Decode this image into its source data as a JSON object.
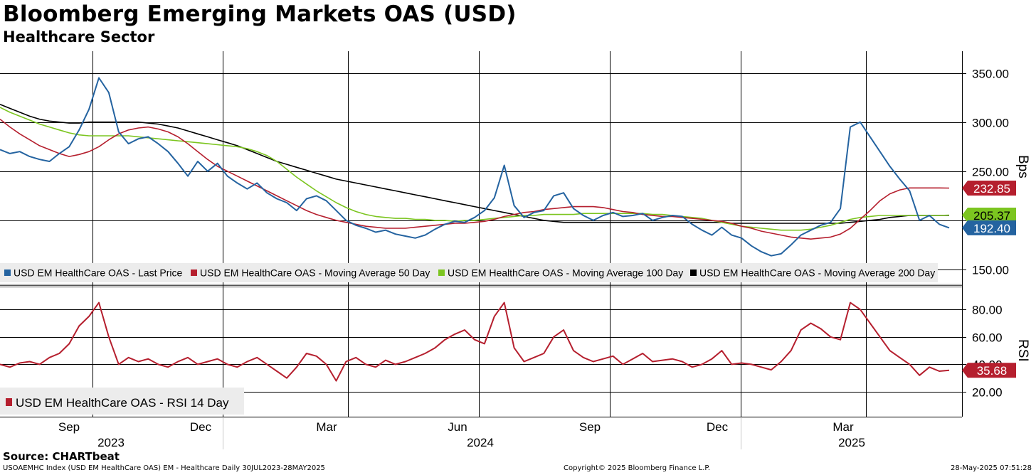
{
  "header": {
    "title": "Bloomberg Emerging Markets OAS (USD)",
    "subtitle": "Healthcare Sector"
  },
  "footer": {
    "source": "Source: CHARTbeat",
    "index_info": "USOAEMHC Index (USD EM HealthCare OAS) EM - Healthcare  Daily 30JUL2023-28MAY2025",
    "copyright": "Copyright© 2025 Bloomberg Finance L.P.",
    "timestamp": "28-May-2025 07:51:28"
  },
  "x_axis": {
    "months": [
      "Sep",
      "Dec",
      "Mar",
      "Jun",
      "Sep",
      "Dec",
      "Mar"
    ],
    "years": [
      "2023",
      "2024",
      "2025"
    ]
  },
  "colors": {
    "last_price": "#2463a0",
    "ma50": "#b51f2e",
    "ma100": "#7cc520",
    "ma200": "#000000",
    "rsi": "#b51f2e"
  },
  "chart_data": [
    {
      "type": "line",
      "title": "Bloomberg Emerging Markets OAS (USD)",
      "subtitle": "Healthcare Sector",
      "ylabel": "Bps",
      "ylim": [
        140,
        368
      ],
      "yticks": [
        "150.00",
        "200.00",
        "250.00",
        "300.00",
        "350.00"
      ],
      "ytick_values": [
        150,
        200,
        250,
        300,
        350
      ],
      "legend_position": "bottom-left",
      "x_dates": [
        "2023-07-30",
        "2023-08-06",
        "2023-08-13",
        "2023-08-20",
        "2023-08-27",
        "2023-09-03",
        "2023-09-10",
        "2023-09-17",
        "2023-09-24",
        "2023-10-01",
        "2023-10-08",
        "2023-10-15",
        "2023-10-22",
        "2023-10-29",
        "2023-11-05",
        "2023-11-12",
        "2023-11-19",
        "2023-11-26",
        "2023-12-03",
        "2023-12-10",
        "2023-12-17",
        "2023-12-24",
        "2023-12-31",
        "2024-01-07",
        "2024-01-14",
        "2024-01-21",
        "2024-01-28",
        "2024-02-04",
        "2024-02-11",
        "2024-02-18",
        "2024-02-25",
        "2024-03-03",
        "2024-03-10",
        "2024-03-17",
        "2024-03-24",
        "2024-03-31",
        "2024-04-07",
        "2024-04-14",
        "2024-04-21",
        "2024-04-28",
        "2024-05-05",
        "2024-05-12",
        "2024-05-19",
        "2024-05-26",
        "2024-06-02",
        "2024-06-09",
        "2024-06-16",
        "2024-06-23",
        "2024-06-30",
        "2024-07-07",
        "2024-07-14",
        "2024-07-21",
        "2024-07-28",
        "2024-08-04",
        "2024-08-11",
        "2024-08-18",
        "2024-08-25",
        "2024-09-01",
        "2024-09-08",
        "2024-09-15",
        "2024-09-22",
        "2024-09-29",
        "2024-10-06",
        "2024-10-13",
        "2024-10-20",
        "2024-10-27",
        "2024-11-03",
        "2024-11-10",
        "2024-11-17",
        "2024-11-24",
        "2024-12-01",
        "2024-12-08",
        "2024-12-15",
        "2024-12-22",
        "2024-12-29",
        "2025-01-05",
        "2025-01-12",
        "2025-01-19",
        "2025-01-26",
        "2025-02-02",
        "2025-02-09",
        "2025-02-16",
        "2025-02-23",
        "2025-03-02",
        "2025-03-09",
        "2025-03-16",
        "2025-03-23",
        "2025-03-30",
        "2025-04-06",
        "2025-04-13",
        "2025-04-20",
        "2025-04-27",
        "2025-05-04",
        "2025-05-11",
        "2025-05-18",
        "2025-05-25",
        "2025-05-28"
      ],
      "series": [
        {
          "name": "USD EM HealthCare OAS - Last Price",
          "color": "#2463a0",
          "last_label": "192.40",
          "values": [
            272,
            268,
            270,
            265,
            262,
            260,
            268,
            275,
            292,
            313,
            345,
            330,
            290,
            278,
            283,
            285,
            278,
            270,
            258,
            245,
            260,
            250,
            258,
            245,
            238,
            232,
            238,
            228,
            222,
            218,
            210,
            222,
            225,
            220,
            210,
            200,
            195,
            192,
            188,
            190,
            186,
            184,
            182,
            185,
            191,
            196,
            199,
            198,
            203,
            210,
            223,
            256,
            215,
            203,
            208,
            210,
            225,
            228,
            212,
            205,
            200,
            205,
            208,
            204,
            205,
            207,
            200,
            203,
            205,
            204,
            196,
            190,
            185,
            193,
            185,
            182,
            174,
            168,
            164,
            166,
            175,
            185,
            190,
            195,
            198,
            212,
            295,
            300,
            285,
            270,
            255,
            242,
            230,
            200,
            205,
            196,
            192.4
          ]
        },
        {
          "name": "USD EM HealthCare OAS - Moving Average 50 Day",
          "color": "#b51f2e",
          "last_label": "232.85",
          "values": [
            303,
            295,
            288,
            282,
            276,
            272,
            268,
            265,
            267,
            270,
            275,
            282,
            288,
            292,
            294,
            295,
            293,
            290,
            285,
            278,
            270,
            262,
            255,
            250,
            245,
            240,
            235,
            230,
            225,
            220,
            215,
            210,
            206,
            203,
            200,
            198,
            196,
            194,
            193,
            192,
            192,
            192,
            193,
            194,
            195,
            196,
            197,
            197,
            198,
            199,
            201,
            204,
            206,
            208,
            209,
            211,
            212,
            213,
            214,
            214,
            214,
            213,
            211,
            209,
            208,
            206,
            205,
            204,
            204,
            203,
            202,
            201,
            200,
            199,
            197,
            194,
            192,
            189,
            187,
            185,
            183,
            182,
            181,
            182,
            183,
            186,
            192,
            201,
            210,
            220,
            227,
            231,
            233,
            233,
            233,
            233,
            232.85
          ]
        },
        {
          "name": "USD EM HealthCare OAS - Moving Average 100 Day",
          "color": "#7cc520",
          "last_label": "205.37",
          "values": [
            315,
            310,
            306,
            302,
            298,
            295,
            292,
            289,
            287,
            286,
            286,
            286,
            286,
            286,
            285,
            284,
            283,
            282,
            281,
            280,
            279,
            278,
            277,
            276,
            275,
            273,
            270,
            266,
            260,
            252,
            244,
            237,
            230,
            224,
            218,
            213,
            209,
            206,
            204,
            203,
            202,
            202,
            201,
            201,
            200,
            200,
            199,
            200,
            200,
            201,
            202,
            203,
            204,
            205,
            205,
            206,
            206,
            206,
            206,
            207,
            207,
            207,
            207,
            207,
            207,
            207,
            206,
            206,
            205,
            204,
            203,
            202,
            200,
            198,
            196,
            194,
            193,
            192,
            191,
            190,
            190,
            190,
            191,
            193,
            195,
            198,
            201,
            203,
            204,
            205,
            205,
            205,
            205,
            205,
            205,
            205,
            205.37
          ]
        },
        {
          "name": "USD EM HealthCare OAS - Moving Average 200 Day",
          "color": "#000000",
          "last_label": "",
          "values": [
            318,
            314,
            310,
            306,
            303,
            301,
            300,
            299,
            299,
            300,
            300,
            300,
            300,
            300,
            300,
            299,
            298,
            296,
            294,
            291,
            288,
            285,
            282,
            279,
            276,
            272,
            268,
            264,
            260,
            257,
            254,
            251,
            248,
            245,
            242,
            240,
            238,
            236,
            234,
            232,
            230,
            228,
            226,
            224,
            222,
            220,
            218,
            216,
            214,
            212,
            210,
            208,
            206,
            204,
            202,
            200,
            199,
            198,
            198,
            198,
            198,
            198,
            198,
            198,
            198,
            198,
            198,
            198,
            198,
            198,
            198,
            198,
            198,
            198,
            197,
            197,
            197,
            197,
            197,
            197,
            197,
            197,
            197,
            197,
            197,
            197,
            198,
            199,
            200,
            201,
            203,
            204,
            205,
            205,
            205,
            205,
            205
          ]
        }
      ]
    },
    {
      "type": "line",
      "ylabel": "RSI",
      "ylim": [
        8,
        93
      ],
      "yticks": [
        "20.00",
        "40.00",
        "60.00",
        "80.00"
      ],
      "ytick_values": [
        20,
        40,
        60,
        80
      ],
      "legend_position": "bottom-left",
      "series": [
        {
          "name": "USD EM HealthCare OAS - RSI 14 Day",
          "color": "#b51f2e",
          "last_label": "35.68",
          "values": [
            40,
            38,
            41,
            42,
            40,
            45,
            48,
            55,
            68,
            75,
            85,
            60,
            40,
            45,
            42,
            44,
            40,
            38,
            42,
            45,
            40,
            42,
            44,
            40,
            38,
            42,
            45,
            40,
            35,
            30,
            38,
            48,
            46,
            40,
            28,
            42,
            45,
            40,
            38,
            43,
            40,
            42,
            45,
            48,
            52,
            58,
            62,
            65,
            58,
            55,
            75,
            85,
            52,
            42,
            45,
            48,
            60,
            65,
            50,
            45,
            42,
            44,
            46,
            40,
            44,
            48,
            42,
            43,
            44,
            42,
            38,
            40,
            44,
            50,
            40,
            41,
            40,
            38,
            36,
            42,
            50,
            65,
            70,
            66,
            60,
            58,
            85,
            80,
            70,
            60,
            50,
            45,
            40,
            32,
            38,
            35,
            35.68
          ]
        }
      ]
    }
  ]
}
